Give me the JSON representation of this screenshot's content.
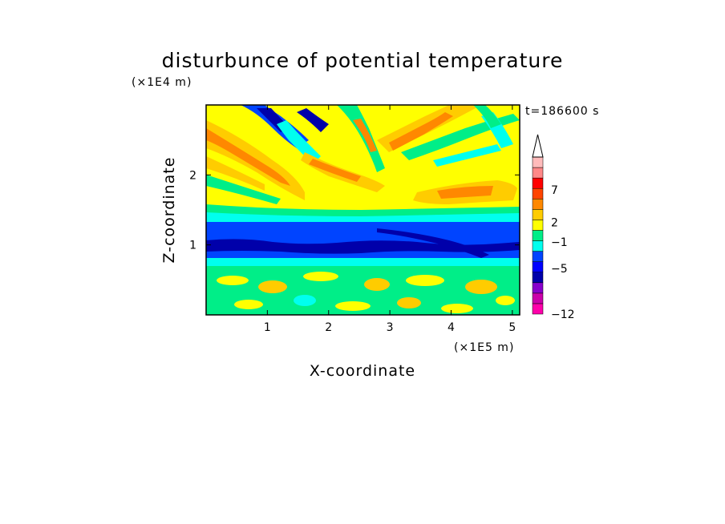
{
  "chart_data": {
    "type": "heatmap",
    "title": "disturbunce of potential temperature",
    "xlabel": "X-coordinate",
    "ylabel": "Z-coordinate",
    "x_unit": "(×1E5 m)",
    "y_unit": "(×1E4 m)",
    "time_label": "t=186600 s",
    "xlim": [
      0,
      5.12
    ],
    "ylim": [
      0,
      3.0
    ],
    "x_ticks": [
      1,
      2,
      3,
      4,
      5
    ],
    "y_ticks": [
      1,
      2
    ],
    "colorbar": {
      "extend": "max",
      "labels": [
        {
          "value": 7,
          "text": "7"
        },
        {
          "value": 2,
          "text": "2"
        },
        {
          "value": -1,
          "text": "−1"
        },
        {
          "value": -5,
          "text": "−5"
        },
        {
          "value": -12,
          "text": "−12"
        }
      ],
      "colors": [
        "#ff00aa",
        "#cc00aa",
        "#8800cc",
        "#0000aa",
        "#0000ff",
        "#0044ff",
        "#00ffee",
        "#00ee88",
        "#ffff00",
        "#ffcc00",
        "#ff8800",
        "#ff4400",
        "#ff0000",
        "#ff8888",
        "#ffbbbb"
      ]
    },
    "description_layers": [
      {
        "z_range": [
          1.3,
          1.45
        ],
        "level": -1,
        "color": "#00ffee"
      },
      {
        "z_range": [
          0.8,
          1.3
        ],
        "level": -3,
        "color": "#0000ff"
      },
      {
        "z_range": [
          0.92,
          1.02
        ],
        "level": -5,
        "color": "#0000aa"
      }
    ]
  }
}
